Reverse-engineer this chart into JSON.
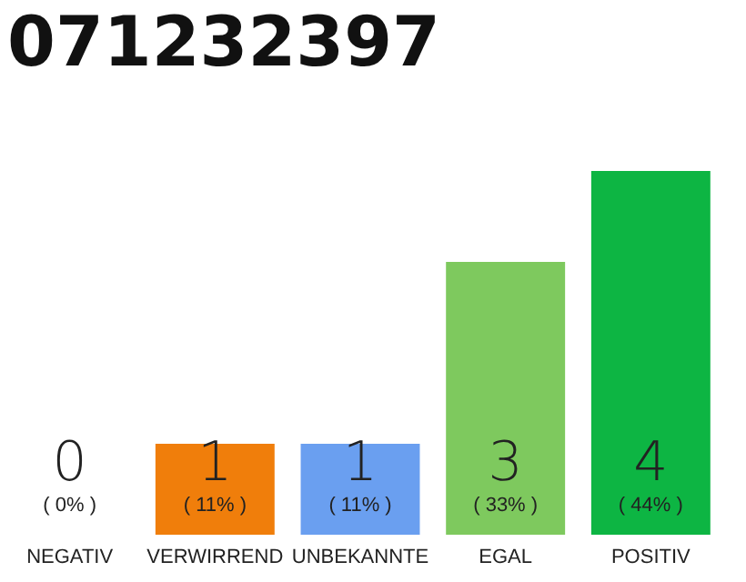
{
  "chart_data": {
    "type": "bar",
    "title": "071232397",
    "categories": [
      "NEGATIV",
      "VERWIRREND",
      "UNBEKANNTE",
      "EGAL",
      "POSITIV"
    ],
    "values": [
      0,
      1,
      1,
      3,
      4
    ],
    "colors": [
      "#e0e0e0",
      "#f07e0b",
      "#6a9ff0",
      "#7ec95e",
      "#0db543"
    ],
    "data_labels": true,
    "annotations": [
      "( 0% )",
      "( 11% )",
      "( 11% )",
      "( 33% )",
      "( 44% )"
    ]
  }
}
